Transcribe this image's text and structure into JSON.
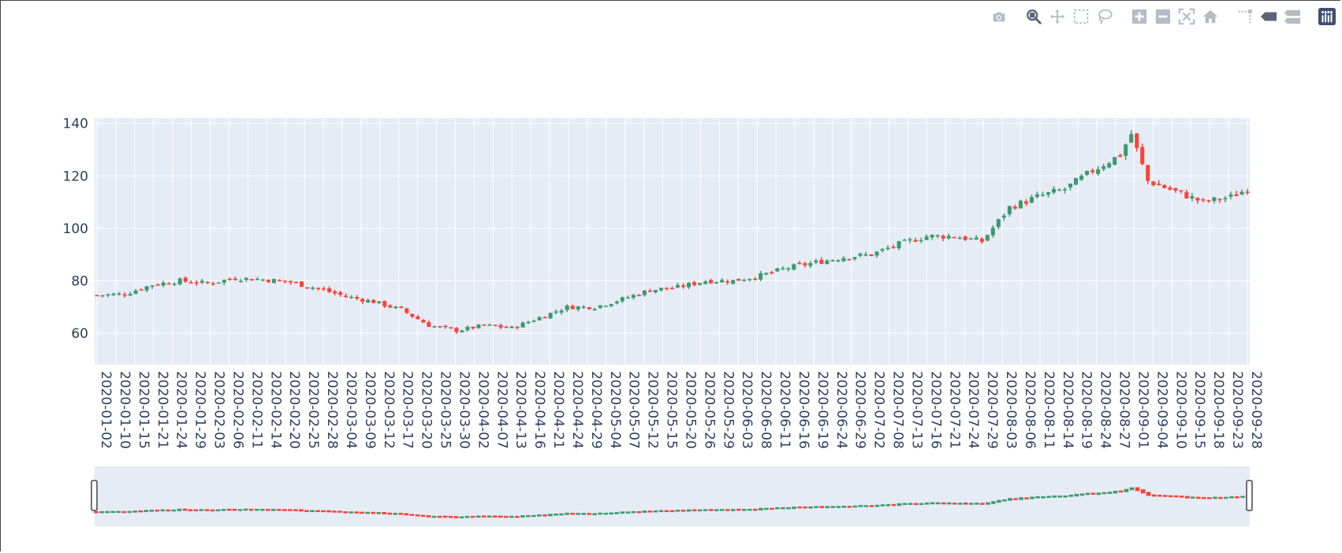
{
  "colors": {
    "increasing": "#3d9970",
    "decreasing": "#ff4136",
    "plot_bg": "#e5ecf6",
    "grid": "#ffffff",
    "tick_text": "#2a3f5f",
    "modebar_icon": "#b5bcc6",
    "modebar_active": "#5b6578",
    "logo": "#3f4f75"
  },
  "modebar": {
    "buttons": [
      {
        "name": "camera-icon"
      },
      {
        "name": "zoom-icon",
        "active": true
      },
      {
        "name": "pan-icon"
      },
      {
        "name": "box-select-icon"
      },
      {
        "name": "lasso-select-icon"
      },
      {
        "name": "zoom-in-icon"
      },
      {
        "name": "zoom-out-icon"
      },
      {
        "name": "autoscale-icon"
      },
      {
        "name": "reset-axes-icon"
      },
      {
        "name": "spike-lines-icon"
      },
      {
        "name": "hover-closest-icon"
      },
      {
        "name": "hover-compare-icon"
      },
      {
        "name": "plotly-logo-icon"
      }
    ]
  },
  "chart_data": {
    "type": "candlestick",
    "title": "",
    "xlabel": "",
    "ylabel": "",
    "ylim": [
      48,
      142
    ],
    "yticks": [
      60,
      80,
      100,
      120,
      140
    ],
    "x_tick_labels": [
      "2020-01-02",
      "2020-01-10",
      "2020-01-15",
      "2020-01-21",
      "2020-01-24",
      "2020-01-29",
      "2020-02-03",
      "2020-02-06",
      "2020-02-11",
      "2020-02-14",
      "2020-02-20",
      "2020-02-25",
      "2020-02-28",
      "2020-03-04",
      "2020-03-09",
      "2020-03-12",
      "2020-03-17",
      "2020-03-20",
      "2020-03-25",
      "2020-03-30",
      "2020-04-02",
      "2020-04-07",
      "2020-04-13",
      "2020-04-16",
      "2020-04-21",
      "2020-04-24",
      "2020-04-29",
      "2020-05-04",
      "2020-05-07",
      "2020-05-12",
      "2020-05-15",
      "2020-05-20",
      "2020-05-26",
      "2020-05-29",
      "2020-06-03",
      "2020-06-08",
      "2020-06-11",
      "2020-06-16",
      "2020-06-19",
      "2020-06-24",
      "2020-06-29",
      "2020-07-02",
      "2020-07-08",
      "2020-07-13",
      "2020-07-16",
      "2020-07-21",
      "2020-07-24",
      "2020-07-29",
      "2020-08-03",
      "2020-08-06",
      "2020-08-11",
      "2020-08-14",
      "2020-08-19",
      "2020-08-24",
      "2020-08-27",
      "2020-09-01",
      "2020-09-04",
      "2020-09-10",
      "2020-09-15",
      "2020-09-18",
      "2020-09-23",
      "2020-09-28"
    ],
    "grid": true,
    "rangeslider": true,
    "close_anchors": [
      [
        0,
        74.5
      ],
      [
        5,
        75
      ],
      [
        10,
        78.5
      ],
      [
        15,
        80
      ],
      [
        20,
        79
      ],
      [
        25,
        81
      ],
      [
        30,
        80.5
      ],
      [
        35,
        79.5
      ],
      [
        40,
        77
      ],
      [
        45,
        74
      ],
      [
        50,
        72
      ],
      [
        55,
        69
      ],
      [
        60,
        63
      ],
      [
        65,
        61
      ],
      [
        70,
        63
      ],
      [
        75,
        62
      ],
      [
        80,
        66
      ],
      [
        85,
        70
      ],
      [
        90,
        70
      ],
      [
        95,
        73
      ],
      [
        100,
        76.5
      ],
      [
        105,
        77.5
      ],
      [
        110,
        80
      ],
      [
        115,
        80
      ],
      [
        120,
        82
      ],
      [
        125,
        85
      ],
      [
        130,
        87
      ],
      [
        135,
        89
      ],
      [
        140,
        90
      ],
      [
        145,
        94
      ],
      [
        150,
        97
      ],
      [
        155,
        97
      ],
      [
        160,
        95
      ],
      [
        165,
        108
      ],
      [
        170,
        112
      ],
      [
        175,
        115
      ],
      [
        180,
        122
      ],
      [
        185,
        128
      ],
      [
        187,
        136
      ],
      [
        190,
        118
      ],
      [
        195,
        114
      ],
      [
        200,
        110
      ],
      [
        205,
        112
      ],
      [
        208,
        115
      ]
    ]
  }
}
